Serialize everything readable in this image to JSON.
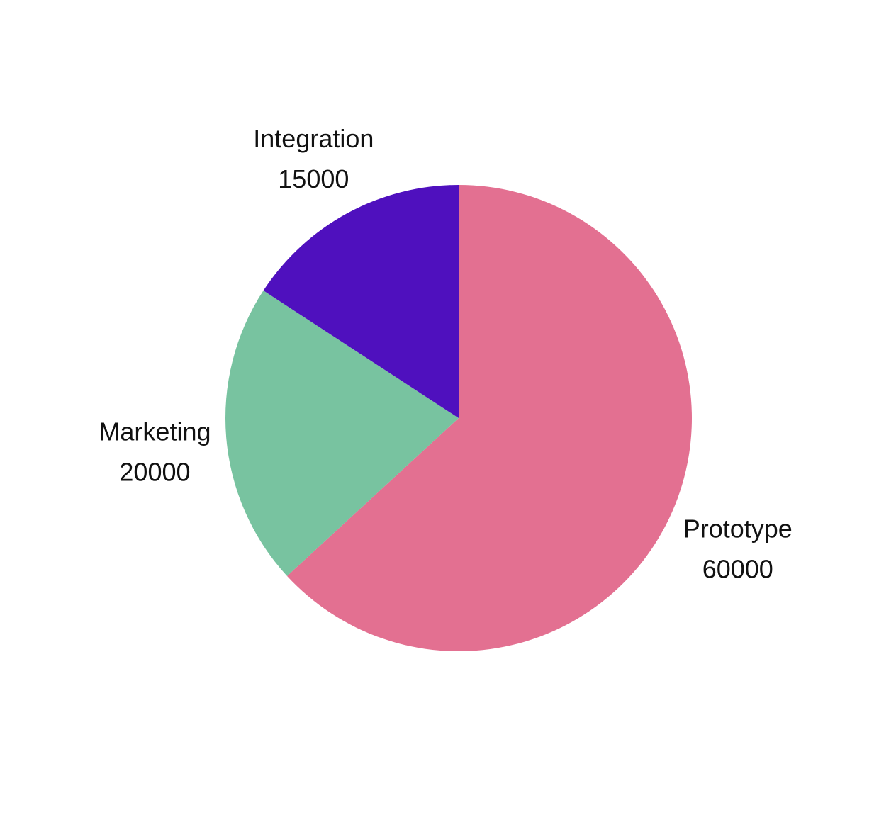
{
  "chart_data": {
    "type": "pie",
    "title": "",
    "slices": [
      {
        "label": "Prototype",
        "value": 60000,
        "color": "#E37091"
      },
      {
        "label": "Marketing",
        "value": 20000,
        "color": "#78C3A0"
      },
      {
        "label": "Integration",
        "value": 15000,
        "color": "#4F10BE"
      }
    ],
    "start_angle": "top (12 o'clock)",
    "direction": "clockwise",
    "labels": "outside, name above value",
    "legend": "none"
  }
}
